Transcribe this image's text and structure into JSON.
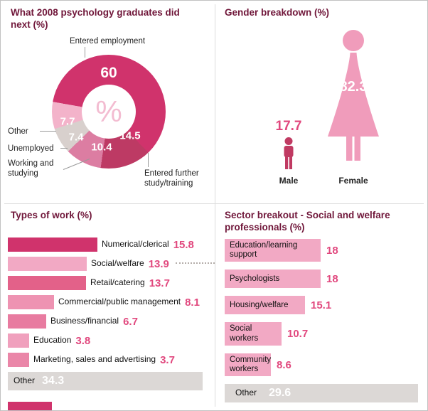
{
  "colors": {
    "heading": "#70173a",
    "value_pink": "#e1487e",
    "donut_main": "#d0336c",
    "female_pink": "#f09cbb",
    "male_pink": "#c03a62",
    "bar_light": "#f2a9c4",
    "gray_bar": "#dcd8d6",
    "line_gray": "#9a9a9a"
  },
  "panels": {
    "did_next": {
      "title": "What 2008 psychology graduates did next (%)",
      "center_symbol": "%"
    },
    "gender": {
      "title": "Gender breakdown (%)"
    },
    "types_of_work": {
      "title": "Types of work (%)"
    },
    "sector": {
      "title": "Sector breakout - Social and welfare professionals (%)"
    }
  },
  "chart_data": [
    {
      "type": "pie",
      "title": "What 2008 psychology graduates did next (%)",
      "donut": true,
      "start_angle_deg": 280,
      "segments": [
        {
          "label": "Entered employment",
          "value": 60,
          "color": "#d0336c"
        },
        {
          "label": "Entered further study/training",
          "value": 14.5,
          "color": "#bd3a64"
        },
        {
          "label": "Working and studying",
          "value": 10.4,
          "color": "#dc7da2"
        },
        {
          "label": "Unemployed",
          "value": 7.4,
          "color": "#d8d0cd"
        },
        {
          "label": "Other",
          "value": 7.7,
          "color": "#f3b3ca"
        }
      ]
    },
    {
      "type": "pictogram",
      "title": "Gender breakdown (%)",
      "categories": [
        "Male",
        "Female"
      ],
      "values": [
        17.7,
        82.3
      ],
      "colors": [
        "#c03a62",
        "#f09cbb"
      ]
    },
    {
      "type": "bar",
      "orientation": "horizontal",
      "title": "Types of work (%)",
      "categories": [
        "Numerical/clerical",
        "Social/welfare",
        "Retail/catering",
        "Commercial/public management",
        "Business/financial",
        "Education",
        "Marketing, sales and advertising",
        "Other"
      ],
      "values": [
        15.8,
        13.9,
        13.7,
        8.1,
        6.7,
        3.8,
        3.7,
        34.3
      ],
      "colors": [
        "#d0336c",
        "#f2a9c4",
        "#e36189",
        "#ee93b2",
        "#e87ba0",
        "#f0a0bd",
        "#ea86a8",
        "#dcd8d6"
      ],
      "xlim": [
        0,
        35
      ]
    },
    {
      "type": "bar",
      "orientation": "horizontal",
      "title": "Sector breakout - Social and welfare professionals (%)",
      "categories": [
        "Education/learning support",
        "Psychologists",
        "Housing/welfare",
        "Social workers",
        "Community workers",
        "Other"
      ],
      "values": [
        18,
        18,
        15.1,
        10.7,
        8.6,
        29.6
      ],
      "colors": [
        "#f2a9c4",
        "#f2a9c4",
        "#f2a9c4",
        "#f2a9c4",
        "#f2a9c4",
        "#dcd8d6"
      ],
      "xlim": [
        0,
        30
      ]
    }
  ]
}
